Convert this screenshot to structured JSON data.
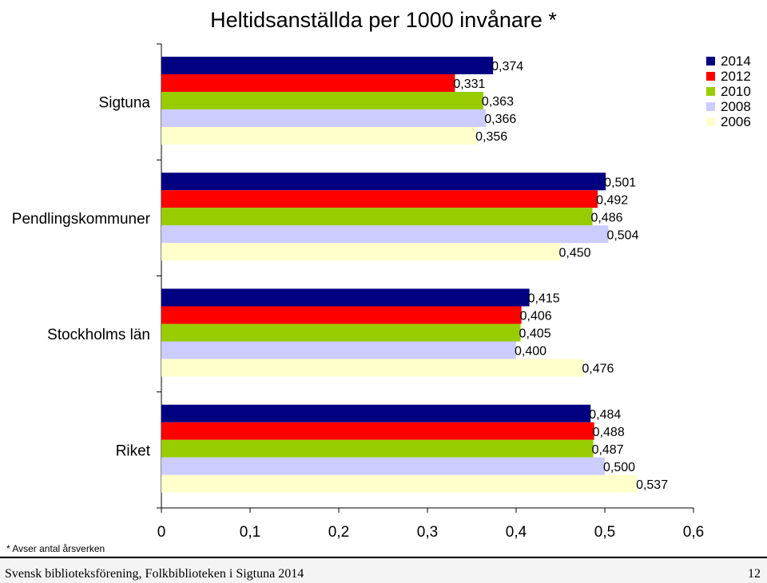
{
  "chart_data": {
    "type": "bar",
    "orientation": "horizontal",
    "title": "Heltidsanställda per 1000 invånare *",
    "categories": [
      "Sigtuna",
      "Pendlingskommuner",
      "Stockholms län",
      "Riket"
    ],
    "series": [
      {
        "name": "2014",
        "color": "#000080",
        "values": [
          0.374,
          0.501,
          0.415,
          0.484
        ],
        "labels": [
          "0,374",
          "0,501",
          "0,415",
          "0,484"
        ]
      },
      {
        "name": "2012",
        "color": "#ff0000",
        "values": [
          0.331,
          0.492,
          0.406,
          0.488
        ],
        "labels": [
          "0,331",
          "0,492",
          "0,406",
          "0,488"
        ]
      },
      {
        "name": "2010",
        "color": "#99cc00",
        "values": [
          0.363,
          0.486,
          0.405,
          0.487
        ],
        "labels": [
          "0,363",
          "0,486",
          "0,405",
          "0,487"
        ]
      },
      {
        "name": "2008",
        "color": "#ccccff",
        "values": [
          0.366,
          0.504,
          0.4,
          0.5
        ],
        "labels": [
          "0,366",
          "0,504",
          "0,400",
          "0,500"
        ]
      },
      {
        "name": "2006",
        "color": "#ffffcc",
        "values": [
          0.356,
          0.45,
          0.476,
          0.537
        ],
        "labels": [
          "0,356",
          "0,450",
          "0,476",
          "0,537"
        ]
      }
    ],
    "xlim": [
      0,
      0.6
    ],
    "xticks": [
      0,
      0.1,
      0.2,
      0.3,
      0.4,
      0.5,
      0.6
    ],
    "xtick_labels": [
      "0",
      "0,1",
      "0,2",
      "0,3",
      "0,4",
      "0,5",
      "0,6"
    ],
    "legend_position": "top-right",
    "grid": false
  },
  "footnote": "* Avser antal årsverken",
  "footer": {
    "left": "Svensk biblioteksförening, Folkbiblioteken i Sigtuna 2014",
    "page_number": "12"
  }
}
